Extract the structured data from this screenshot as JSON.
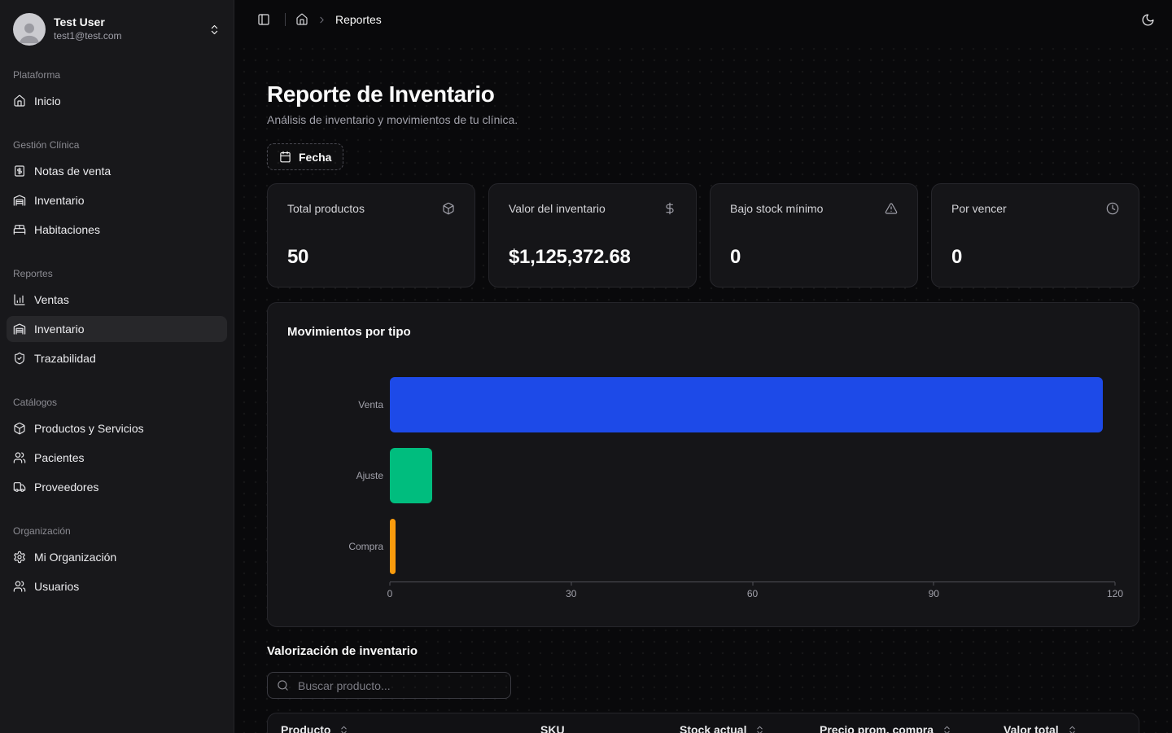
{
  "user": {
    "name": "Test User",
    "email": "test1@test.com",
    "menu_icon": "chevrons-up-down-icon",
    "avatar_icon": "person-icon"
  },
  "sidebar": {
    "sections": [
      {
        "label": "Plataforma",
        "items": [
          {
            "label": "Inicio",
            "icon": "home-icon",
            "active": false
          }
        ]
      },
      {
        "label": "Gestión Clínica",
        "items": [
          {
            "label": "Notas de venta",
            "icon": "receipt-dollar-icon",
            "active": false
          },
          {
            "label": "Inventario",
            "icon": "warehouse-icon",
            "active": false
          },
          {
            "label": "Habitaciones",
            "icon": "bed-icon",
            "active": false
          }
        ]
      },
      {
        "label": "Reportes",
        "items": [
          {
            "label": "Ventas",
            "icon": "bar-chart-icon",
            "active": false
          },
          {
            "label": "Inventario",
            "icon": "warehouse-icon",
            "active": true
          },
          {
            "label": "Trazabilidad",
            "icon": "shield-check-icon",
            "active": false
          }
        ]
      },
      {
        "label": "Catálogos",
        "items": [
          {
            "label": "Productos y Servicios",
            "icon": "package-icon",
            "active": false
          },
          {
            "label": "Pacientes",
            "icon": "users-icon",
            "active": false
          },
          {
            "label": "Proveedores",
            "icon": "truck-icon",
            "active": false
          }
        ]
      },
      {
        "label": "Organización",
        "items": [
          {
            "label": "Mi Organización",
            "icon": "settings-icon",
            "active": false
          },
          {
            "label": "Usuarios",
            "icon": "users-icon",
            "active": false
          }
        ]
      }
    ]
  },
  "topbar": {
    "sidebar_toggle_icon": "panel-left-icon",
    "home_icon": "home-icon",
    "breadcrumb": "Reportes",
    "theme_toggle_icon": "moon-icon"
  },
  "page": {
    "title": "Reporte de Inventario",
    "subtitle": "Análisis de inventario y movimientos de tu clínica.",
    "date_button_label": "Fecha",
    "date_button_icon": "calendar-icon"
  },
  "stats": [
    {
      "label": "Total productos",
      "value": "50",
      "icon": "package-icon"
    },
    {
      "label": "Valor del inventario",
      "value": "$1,125,372.68",
      "icon": "dollar-icon"
    },
    {
      "label": "Bajo stock mínimo",
      "value": "0",
      "icon": "alert-triangle-icon"
    },
    {
      "label": "Por vencer",
      "value": "0",
      "icon": "clock-icon"
    }
  ],
  "chart_data": {
    "type": "bar",
    "orientation": "horizontal",
    "title": "Movimientos por tipo",
    "categories": [
      "Venta",
      "Ajuste",
      "Compra"
    ],
    "values": [
      118,
      7,
      1
    ],
    "colors": [
      "#1d4ae8",
      "#00bd7e",
      "#f99b0d"
    ],
    "xlim": [
      0,
      120
    ],
    "x_ticks": [
      0,
      30,
      60,
      90,
      120
    ],
    "xlabel": "",
    "ylabel": "",
    "grid": false,
    "legend": false
  },
  "valuation": {
    "title": "Valorización de inventario",
    "search_placeholder": "Buscar producto...",
    "search_icon": "search-icon",
    "table": {
      "columns": [
        {
          "label": "Producto",
          "sortable": true
        },
        {
          "label": "SKU",
          "sortable": false
        },
        {
          "label": "Stock actual",
          "sortable": true
        },
        {
          "label": "Precio prom. compra",
          "sortable": true
        },
        {
          "label": "Valor total",
          "sortable": true
        }
      ],
      "sort_icon": "chevrons-up-down-icon"
    }
  }
}
